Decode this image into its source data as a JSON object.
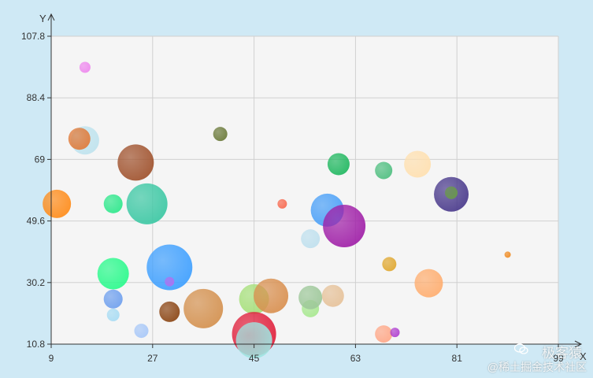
{
  "chart_data": {
    "type": "scatter",
    "title": "",
    "xlabel": "X",
    "ylabel": "Y",
    "xlim": [
      9,
      99
    ],
    "ylim": [
      10.8,
      107.8
    ],
    "xticks": [
      "9",
      "27",
      "45",
      "63",
      "81",
      "99"
    ],
    "yticks": [
      "10.8",
      "30.2",
      "49.6",
      "69",
      "88.4",
      "107.8"
    ],
    "grid": true,
    "legend": "none",
    "points": [
      {
        "x": 15,
        "y": 98,
        "size": 7,
        "color": "#ee88ee"
      },
      {
        "x": 15,
        "y": 75,
        "size": 18,
        "color": "#bfe3ee"
      },
      {
        "x": 14,
        "y": 75.5,
        "size": 14,
        "color": "#e07b3a"
      },
      {
        "x": 10,
        "y": 55,
        "size": 18,
        "color": "#ff8c1a"
      },
      {
        "x": 20,
        "y": 55,
        "size": 12,
        "color": "#2ee88c"
      },
      {
        "x": 24,
        "y": 68,
        "size": 23,
        "color": "#a0522d"
      },
      {
        "x": 26,
        "y": 55,
        "size": 26,
        "color": "#3cc8a4"
      },
      {
        "x": 20,
        "y": 33,
        "size": 20,
        "color": "#2afa8c"
      },
      {
        "x": 20,
        "y": 25,
        "size": 12,
        "color": "#6fa0ee"
      },
      {
        "x": 20,
        "y": 20,
        "size": 8,
        "color": "#a8dcf4"
      },
      {
        "x": 25,
        "y": 15,
        "size": 9,
        "color": "#a8c8f8"
      },
      {
        "x": 30,
        "y": 35,
        "size": 29,
        "color": "#3fa0ff"
      },
      {
        "x": 30,
        "y": 30.5,
        "size": 6,
        "color": "#b070f0"
      },
      {
        "x": 30,
        "y": 21,
        "size": 13,
        "color": "#8b4513"
      },
      {
        "x": 36,
        "y": 22,
        "size": 25,
        "color": "#d4914f"
      },
      {
        "x": 39,
        "y": 77,
        "size": 9,
        "color": "#6b7a3a"
      },
      {
        "x": 45,
        "y": 25,
        "size": 19,
        "color": "#a6e07a"
      },
      {
        "x": 45,
        "y": 14,
        "size": 28,
        "color": "#e0203c"
      },
      {
        "x": 45,
        "y": 12,
        "size": 23,
        "color": "#a0e4e0"
      },
      {
        "x": 48,
        "y": 26,
        "size": 22,
        "color": "#d99050"
      },
      {
        "x": 50,
        "y": 55,
        "size": 6,
        "color": "#f86a50"
      },
      {
        "x": 55,
        "y": 44,
        "size": 12,
        "color": "#bfe0ee"
      },
      {
        "x": 55,
        "y": 22,
        "size": 11,
        "color": "#a8e890"
      },
      {
        "x": 55,
        "y": 25.5,
        "size": 15,
        "color": "#9ec89a"
      },
      {
        "x": 58,
        "y": 53,
        "size": 21,
        "color": "#4aa0f8"
      },
      {
        "x": 59,
        "y": 26,
        "size": 14,
        "color": "#e6c29a"
      },
      {
        "x": 60,
        "y": 67.5,
        "size": 14,
        "color": "#20b860"
      },
      {
        "x": 61,
        "y": 48,
        "size": 27,
        "color": "#a020a8"
      },
      {
        "x": 68,
        "y": 65.5,
        "size": 11,
        "color": "#4fbf80"
      },
      {
        "x": 68,
        "y": 14,
        "size": 11,
        "color": "#ffa888"
      },
      {
        "x": 69,
        "y": 36,
        "size": 9,
        "color": "#e0a830"
      },
      {
        "x": 70,
        "y": 14.5,
        "size": 6,
        "color": "#b040d0"
      },
      {
        "x": 74,
        "y": 67.5,
        "size": 17,
        "color": "#ffe0b0"
      },
      {
        "x": 76,
        "y": 30,
        "size": 18,
        "color": "#ffae70"
      },
      {
        "x": 80,
        "y": 58,
        "size": 22,
        "color": "#4a3a8c"
      },
      {
        "x": 80,
        "y": 58.5,
        "size": 8,
        "color": "#6a9a4a"
      },
      {
        "x": 90,
        "y": 39,
        "size": 4,
        "color": "#f08a20"
      }
    ]
  },
  "watermark": {
    "brand": "极客猿",
    "site": "@稀土掘金技术社区"
  }
}
